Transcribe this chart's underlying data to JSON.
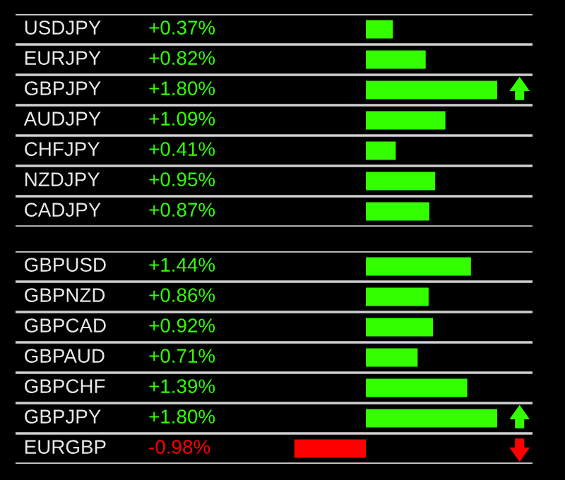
{
  "chart_data": [
    {
      "type": "bar",
      "orientation": "horizontal",
      "grid": "y",
      "categories": [
        "USDJPY",
        "EURJPY",
        "GBPJPY",
        "AUDJPY",
        "CHFJPY",
        "NZDJPY",
        "CADJPY"
      ],
      "values": [
        0.37,
        0.82,
        1.8,
        1.09,
        0.41,
        0.95,
        0.87
      ],
      "value_labels": [
        "+0.37%",
        "+0.82%",
        "+1.80%",
        "+1.09%",
        "+0.41%",
        "+0.95%",
        "+0.87%"
      ],
      "colors": [
        "#33ff00",
        "#33ff00",
        "#33ff00",
        "#33ff00",
        "#33ff00",
        "#33ff00",
        "#33ff00"
      ]
    },
    {
      "type": "bar",
      "orientation": "horizontal",
      "grid": "y",
      "categories": [
        "GBPUSD",
        "GBPNZD",
        "GBPCAD",
        "GBPAUD",
        "GBPCHF",
        "GBPJPY",
        "EURGBP"
      ],
      "values": [
        1.44,
        0.86,
        0.92,
        0.71,
        1.39,
        1.8,
        -0.98
      ],
      "value_labels": [
        "+1.44%",
        "+0.86%",
        "+0.92%",
        "+0.71%",
        "+1.39%",
        "+1.80%",
        "-0.98%"
      ],
      "colors": [
        "#33ff00",
        "#33ff00",
        "#33ff00",
        "#33ff00",
        "#33ff00",
        "#33ff00",
        "#ff0000"
      ]
    }
  ]
}
